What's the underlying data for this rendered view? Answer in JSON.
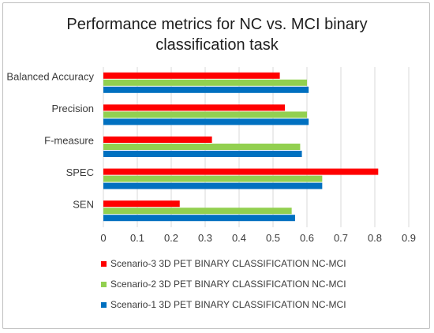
{
  "chart_data": {
    "type": "bar",
    "orientation": "horizontal",
    "title": "Performance metrics for NC vs. MCI binary classification task",
    "title_lines": [
      "Performance metrics for NC vs. MCI binary",
      "classification task"
    ],
    "categories": [
      "Balanced Accuracy",
      "Precision",
      "F-measure",
      "SPEC",
      "SEN"
    ],
    "series": [
      {
        "name": "Scenario-3 3D PET BINARY CLASSIFICATION NC-MCI",
        "color": "#ff0000",
        "values": [
          0.52,
          0.535,
          0.32,
          0.81,
          0.225
        ]
      },
      {
        "name": "Scenario-2 3D PET BINARY CLASSIFICATION NC-MCI",
        "color": "#92d050",
        "values": [
          0.6,
          0.6,
          0.58,
          0.645,
          0.555
        ]
      },
      {
        "name": "Scenario-1 3D PET BINARY CLASSIFICATION NC-MCI",
        "color": "#0070c0",
        "values": [
          0.605,
          0.605,
          0.585,
          0.645,
          0.565
        ]
      }
    ],
    "xlim": [
      0,
      0.9
    ],
    "xticks": [
      "0",
      "0.1",
      "0.2",
      "0.3",
      "0.4",
      "0.5",
      "0.6",
      "0.7",
      "0.8",
      "0.9"
    ],
    "xlabel": "",
    "ylabel": "",
    "grid": true,
    "legend_position": "bottom"
  }
}
